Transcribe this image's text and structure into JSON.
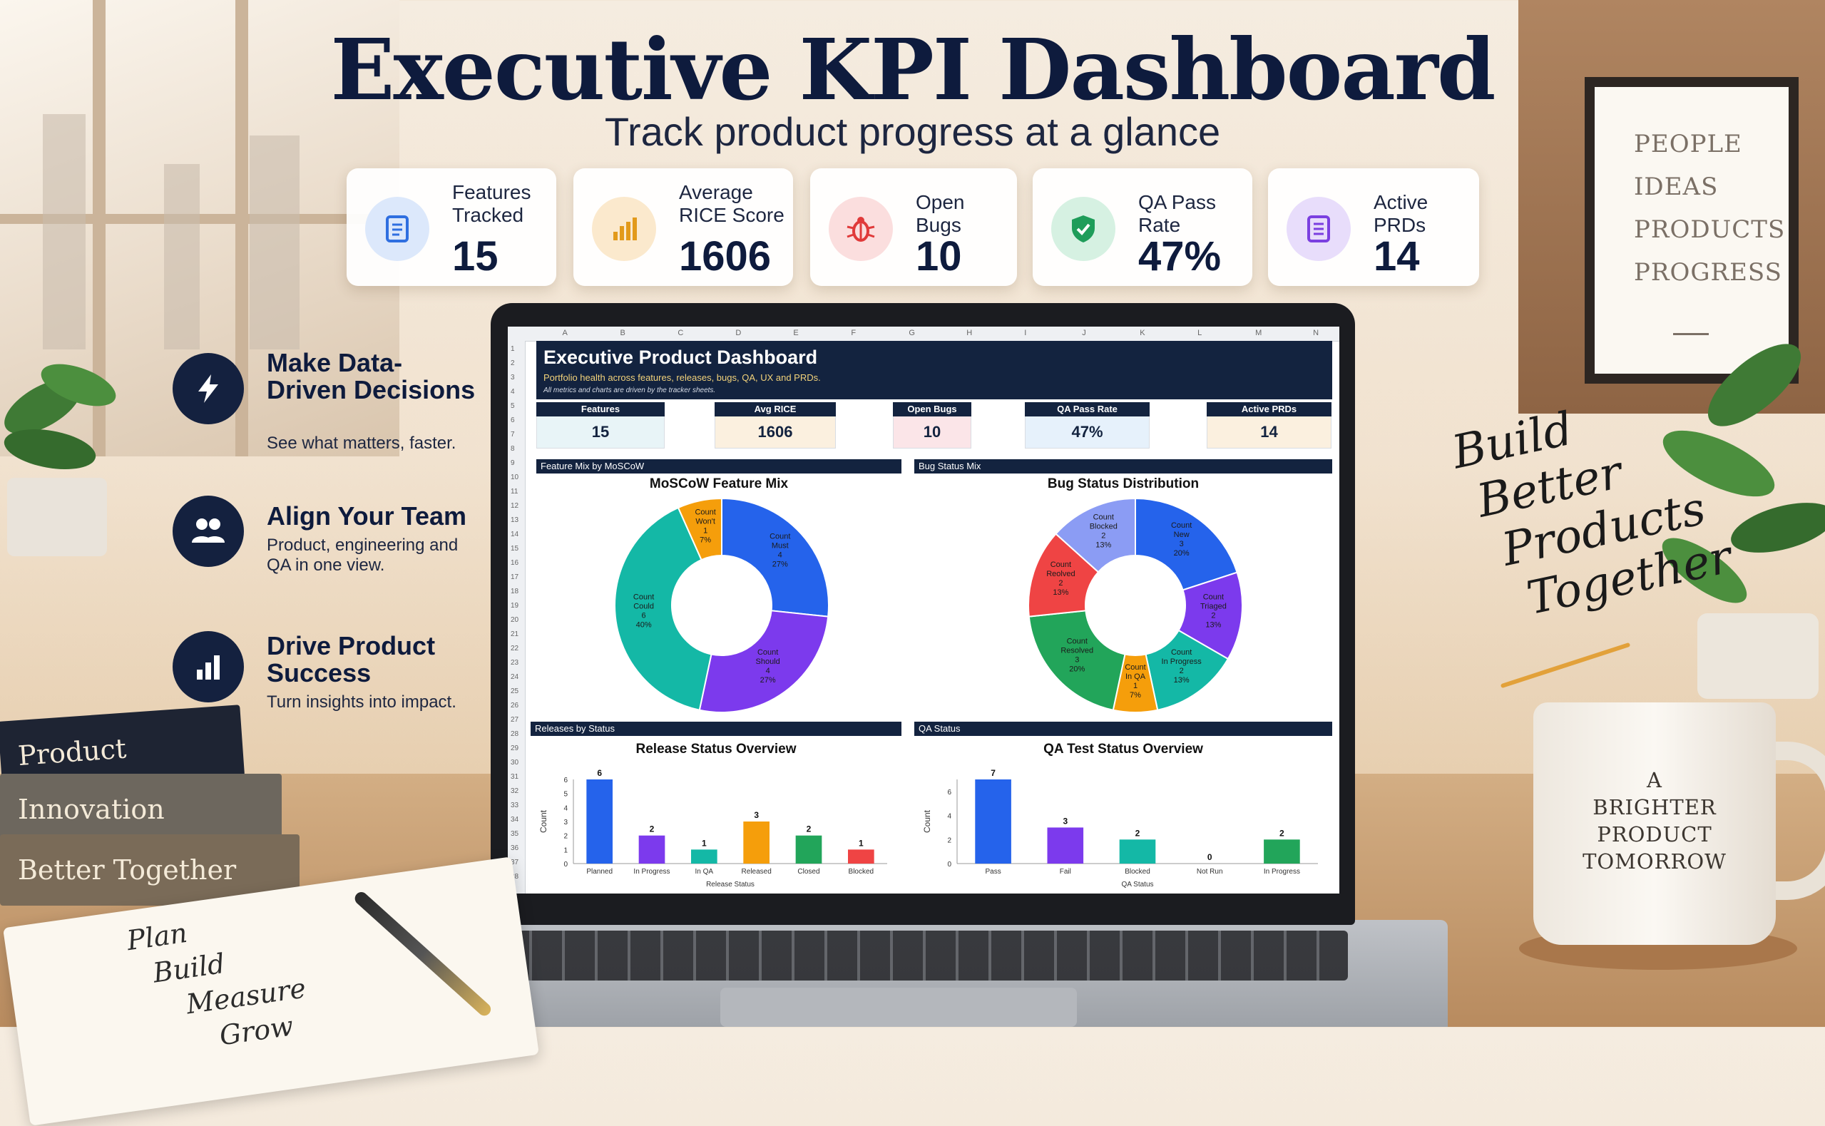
{
  "header": {
    "title": "Executive KPI Dashboard",
    "subtitle": "Track product progress at a glance"
  },
  "kpis": [
    {
      "label": "Features Tracked",
      "value": "15",
      "icon": "document-icon",
      "color": "#2f6fe0",
      "bg": "#dce8fb"
    },
    {
      "label": "Average RICE Score",
      "value": "1606",
      "icon": "bar-chart-icon",
      "color": "#e29a1b",
      "bg": "#fbe9cd"
    },
    {
      "label": "Open Bugs",
      "value": "10",
      "icon": "bug-icon",
      "color": "#e03a3a",
      "bg": "#fbdede"
    },
    {
      "label": "QA Pass Rate",
      "value": "47%",
      "icon": "shield-check-icon",
      "color": "#1f9d5a",
      "bg": "#d6f1e2"
    },
    {
      "label": "Active PRDs",
      "value": "14",
      "icon": "document-list-icon",
      "color": "#7b3fe0",
      "bg": "#e8ddfb"
    }
  ],
  "features": [
    {
      "heading": "Make Data-Driven Decisions",
      "text": "See what matters, faster.",
      "icon": "lightning-icon"
    },
    {
      "heading": "Align Your Team",
      "text": "Product, engineering and QA in one view.",
      "icon": "team-icon"
    },
    {
      "heading": "Drive Product Success",
      "text": "Turn insights into impact.",
      "icon": "bar-chart-icon"
    }
  ],
  "sheet": {
    "columns": [
      "A",
      "B",
      "C",
      "D",
      "E",
      "F",
      "G",
      "H",
      "I",
      "J",
      "K",
      "L",
      "M",
      "N"
    ],
    "title": "Executive Product Dashboard",
    "subtitle": "Portfolio health across features, releases, bugs, QA, UX and PRDs.",
    "note": "All metrics and charts are driven by the tracker sheets.",
    "kpis": [
      {
        "label": "Features",
        "value": "15",
        "bg": "#e8f4f7"
      },
      {
        "label": "Avg RICE",
        "value": "1606",
        "bg": "#fbf0df"
      },
      {
        "label": "Open Bugs",
        "value": "10",
        "bg": "#fbe5e8"
      },
      {
        "label": "QA Pass Rate",
        "value": "47%",
        "bg": "#e6f1fb"
      },
      {
        "label": "Active PRDs",
        "value": "14",
        "bg": "#fbf0df"
      }
    ],
    "sections": {
      "moscow": "Feature Mix by MoSCoW",
      "bugs": "Bug Status Mix",
      "releases": "Releases by Status",
      "qa": "QA Status"
    }
  },
  "chart_data": [
    {
      "type": "pie",
      "title": "MoSCoW Feature Mix",
      "slices": [
        {
          "label": "Count Must",
          "value": 4,
          "pct": "27%",
          "color": "#2563eb"
        },
        {
          "label": "Count Should",
          "value": 4,
          "pct": "27%",
          "color": "#7c3aed"
        },
        {
          "label": "Count Could",
          "value": 6,
          "pct": "40%",
          "color": "#14b8a6"
        },
        {
          "label": "Count Won't",
          "value": 1,
          "pct": "7%",
          "color": "#f59e0b"
        }
      ]
    },
    {
      "type": "pie",
      "title": "Bug Status Distribution",
      "slices": [
        {
          "label": "Count New",
          "value": 3,
          "pct": "20%",
          "color": "#2563eb"
        },
        {
          "label": "Count Triaged",
          "value": 2,
          "pct": "13%",
          "color": "#7c3aed"
        },
        {
          "label": "Count In Progress",
          "value": 2,
          "pct": "13%",
          "color": "#14b8a6"
        },
        {
          "label": "Count In QA",
          "value": 1,
          "pct": "7%",
          "color": "#f59e0b"
        },
        {
          "label": "Count Resolved",
          "value": 3,
          "pct": "20%",
          "color": "#22a55a"
        },
        {
          "label": "Count Reolved",
          "value": 2,
          "pct": "13%",
          "color": "#ef4444"
        },
        {
          "label": "Count Blocked",
          "value": 2,
          "pct": "13%",
          "color": "#8b9cf4"
        }
      ]
    },
    {
      "type": "bar",
      "title": "Release Status Overview",
      "xlabel": "Release Status",
      "ylabel": "Count",
      "ylim": [
        0,
        6
      ],
      "yticks": [
        0,
        1,
        2,
        3,
        4,
        5,
        6
      ],
      "categories": [
        "Planned",
        "In Progress",
        "In QA",
        "Released",
        "Closed",
        "Blocked"
      ],
      "values": [
        6,
        2,
        1,
        3,
        2,
        1
      ],
      "colors": [
        "#2563eb",
        "#7c3aed",
        "#14b8a6",
        "#f59e0b",
        "#22a55a",
        "#ef4444"
      ]
    },
    {
      "type": "bar",
      "title": "QA Test Status Overview",
      "xlabel": "QA Status",
      "ylabel": "Count",
      "ylim": [
        0,
        7
      ],
      "yticks": [
        0,
        2,
        4,
        6
      ],
      "categories": [
        "Pass",
        "Fail",
        "Blocked",
        "Not Run",
        "In Progress"
      ],
      "values": [
        7,
        3,
        2,
        0,
        2
      ],
      "colors": [
        "#2563eb",
        "#7c3aed",
        "#14b8a6",
        "#f59e0b",
        "#22a55a"
      ]
    }
  ],
  "decor": {
    "poster": [
      "PEOPLE",
      "IDEAS",
      "PRODUCTS",
      "PROGRESS"
    ],
    "handwriting": [
      "Build",
      "Better",
      "Products",
      "Together"
    ],
    "mug": [
      "A",
      "BRIGHTER",
      "PRODUCT",
      "TOMORROW"
    ],
    "books": [
      "Product Strategy",
      "Innovation",
      "Better Together"
    ],
    "notepad": [
      "Plan",
      "Build",
      "Measure",
      "Grow"
    ]
  }
}
